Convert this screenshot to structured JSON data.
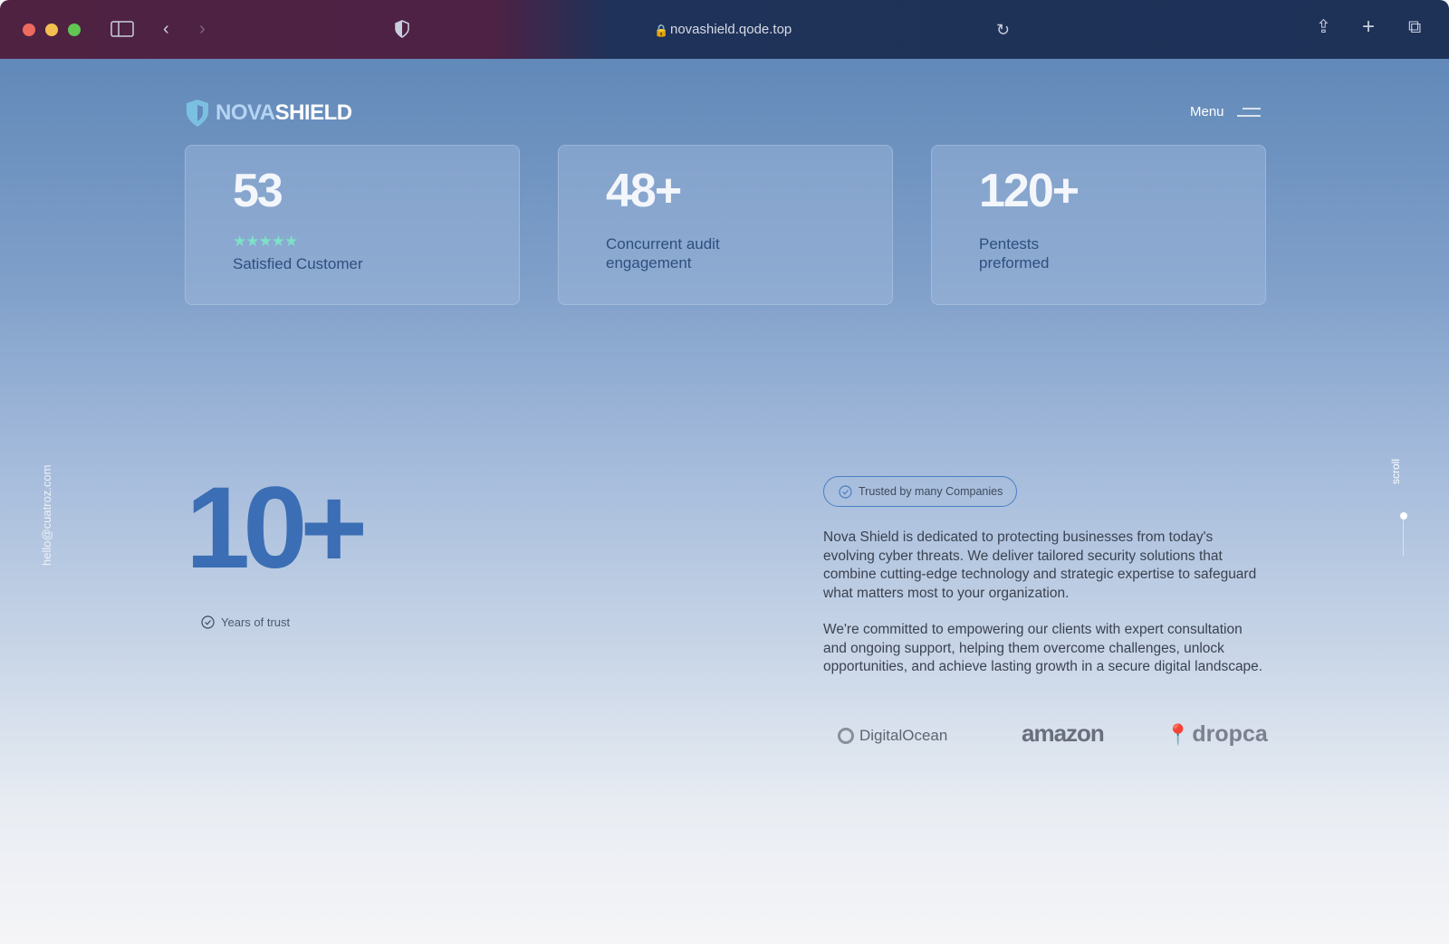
{
  "browser": {
    "url": "novashield.qode.top",
    "traffic_lights": [
      "#ee6a5f",
      "#f5bf4f",
      "#61c554"
    ]
  },
  "header": {
    "logo_part1": "NOVA",
    "logo_part2": "SHIELD",
    "menu_label": "Menu"
  },
  "stats": [
    {
      "value": "53",
      "rating": 5,
      "stars": "★★★★★",
      "label": "Satisfied Customer"
    },
    {
      "value": "48+",
      "label": "Concurrent audit engagement"
    },
    {
      "value": "120+",
      "label": "Pentests preformed"
    }
  ],
  "hero": {
    "big_number": "10+",
    "years_label": "Years of trust"
  },
  "about": {
    "badge": "Trusted by many Companies",
    "paragraph1": "Nova Shield is dedicated to protecting businesses from today's evolving cyber threats. We deliver tailored security solutions that combine cutting-edge technology and strategic expertise to safeguard what matters most to your organization.",
    "paragraph2": "We're committed to empowering our clients with expert consultation and ongoing support, helping them overcome challenges, unlock opportunities, and achieve lasting growth in a secure digital landscape.",
    "logos": [
      "DigitalOcean",
      "amazon",
      "dropcam"
    ]
  },
  "side": {
    "email": "hello@cuatroz.com",
    "scroll": "scroll"
  }
}
